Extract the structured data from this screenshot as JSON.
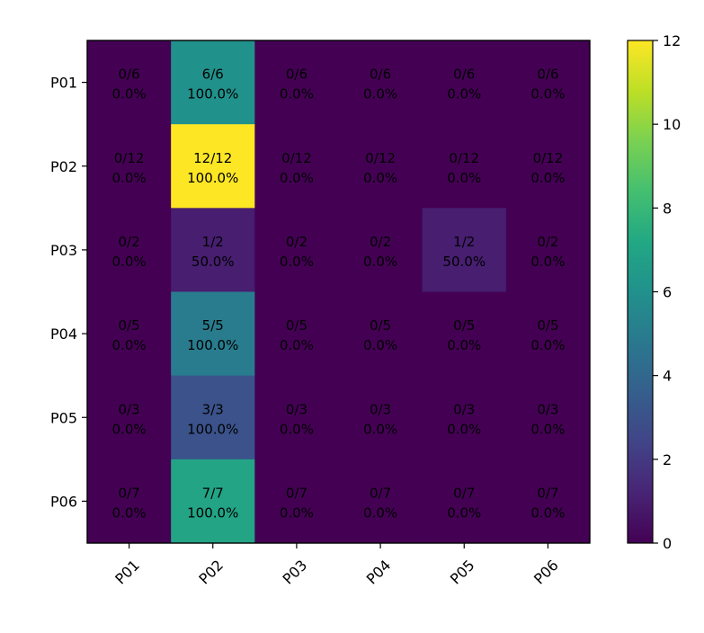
{
  "chart_data": {
    "type": "heatmap",
    "title": "",
    "xlabel": "",
    "ylabel": "",
    "x_categories": [
      "P01",
      "P02",
      "P03",
      "P04",
      "P05",
      "P06"
    ],
    "y_categories": [
      "P01",
      "P02",
      "P03",
      "P04",
      "P05",
      "P06"
    ],
    "values": [
      [
        0,
        6,
        0,
        0,
        0,
        0
      ],
      [
        0,
        12,
        0,
        0,
        0,
        0
      ],
      [
        0,
        1,
        0,
        0,
        1,
        0
      ],
      [
        0,
        5,
        0,
        0,
        0,
        0
      ],
      [
        0,
        3,
        0,
        0,
        0,
        0
      ],
      [
        0,
        7,
        0,
        0,
        0,
        0
      ]
    ],
    "cell_labels": [
      [
        [
          "0/6",
          "0.0%"
        ],
        [
          "6/6",
          "100.0%"
        ],
        [
          "0/6",
          "0.0%"
        ],
        [
          "0/6",
          "0.0%"
        ],
        [
          "0/6",
          "0.0%"
        ],
        [
          "0/6",
          "0.0%"
        ]
      ],
      [
        [
          "0/12",
          "0.0%"
        ],
        [
          "12/12",
          "100.0%"
        ],
        [
          "0/12",
          "0.0%"
        ],
        [
          "0/12",
          "0.0%"
        ],
        [
          "0/12",
          "0.0%"
        ],
        [
          "0/12",
          "0.0%"
        ]
      ],
      [
        [
          "0/2",
          "0.0%"
        ],
        [
          "1/2",
          "50.0%"
        ],
        [
          "0/2",
          "0.0%"
        ],
        [
          "0/2",
          "0.0%"
        ],
        [
          "1/2",
          "50.0%"
        ],
        [
          "0/2",
          "0.0%"
        ]
      ],
      [
        [
          "0/5",
          "0.0%"
        ],
        [
          "5/5",
          "100.0%"
        ],
        [
          "0/5",
          "0.0%"
        ],
        [
          "0/5",
          "0.0%"
        ],
        [
          "0/5",
          "0.0%"
        ],
        [
          "0/5",
          "0.0%"
        ]
      ],
      [
        [
          "0/3",
          "0.0%"
        ],
        [
          "3/3",
          "100.0%"
        ],
        [
          "0/3",
          "0.0%"
        ],
        [
          "0/3",
          "0.0%"
        ],
        [
          "0/3",
          "0.0%"
        ],
        [
          "0/3",
          "0.0%"
        ]
      ],
      [
        [
          "0/7",
          "0.0%"
        ],
        [
          "7/7",
          "100.0%"
        ],
        [
          "0/7",
          "0.0%"
        ],
        [
          "0/7",
          "0.0%"
        ],
        [
          "0/7",
          "0.0%"
        ],
        [
          "0/7",
          "0.0%"
        ]
      ]
    ],
    "colormap": "viridis",
    "vmin": 0,
    "vmax": 12,
    "colorbar_ticks": [
      0,
      2,
      4,
      6,
      8,
      10,
      12
    ],
    "colorbar_labels": [
      "0",
      "2",
      "4",
      "6",
      "8",
      "10",
      "12"
    ]
  }
}
